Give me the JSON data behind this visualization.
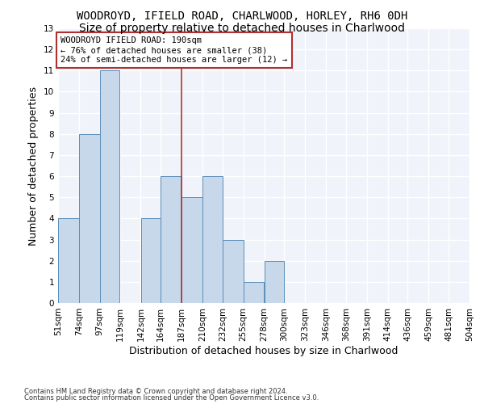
{
  "title": "WOODROYD, IFIELD ROAD, CHARLWOOD, HORLEY, RH6 0DH",
  "subtitle": "Size of property relative to detached houses in Charlwood",
  "xlabel": "Distribution of detached houses by size in Charlwood",
  "ylabel": "Number of detached properties",
  "bar_values": [
    4,
    8,
    11,
    0,
    4,
    6,
    5,
    6,
    3,
    1,
    2,
    0,
    0,
    0,
    0,
    0,
    0,
    0,
    0,
    0
  ],
  "bin_edges": [
    51,
    74,
    97,
    119,
    142,
    164,
    187,
    210,
    232,
    255,
    278,
    300,
    323,
    346,
    368,
    391,
    414,
    436,
    459,
    481,
    504
  ],
  "tick_labels": [
    "51sqm",
    "74sqm",
    "97sqm",
    "119sqm",
    "142sqm",
    "164sqm",
    "187sqm",
    "210sqm",
    "232sqm",
    "255sqm",
    "278sqm",
    "300sqm",
    "323sqm",
    "346sqm",
    "368sqm",
    "391sqm",
    "414sqm",
    "436sqm",
    "459sqm",
    "481sqm",
    "504sqm"
  ],
  "bar_color": "#c8d8eb",
  "bar_edge_color": "#5b8db8",
  "vline_x": 187,
  "vline_color": "#b03030",
  "annotation_text": "WOODROYD IFIELD ROAD: 190sqm\n← 76% of detached houses are smaller (38)\n24% of semi-detached houses are larger (12) →",
  "annotation_box_color": "#ffffff",
  "annotation_box_edge": "#b03030",
  "ylim": [
    0,
    13
  ],
  "yticks": [
    0,
    1,
    2,
    3,
    4,
    5,
    6,
    7,
    8,
    9,
    10,
    11,
    12,
    13
  ],
  "footer_line1": "Contains HM Land Registry data © Crown copyright and database right 2024.",
  "footer_line2": "Contains public sector information licensed under the Open Government Licence v3.0.",
  "background_color": "#ffffff",
  "plot_bg_color": "#f0f4fa",
  "grid_color": "#ffffff",
  "title_fontsize": 10,
  "subtitle_fontsize": 10,
  "tick_fontsize": 7.5,
  "ylabel_fontsize": 9,
  "xlabel_fontsize": 9,
  "footer_fontsize": 6,
  "annotation_fontsize": 7.5
}
